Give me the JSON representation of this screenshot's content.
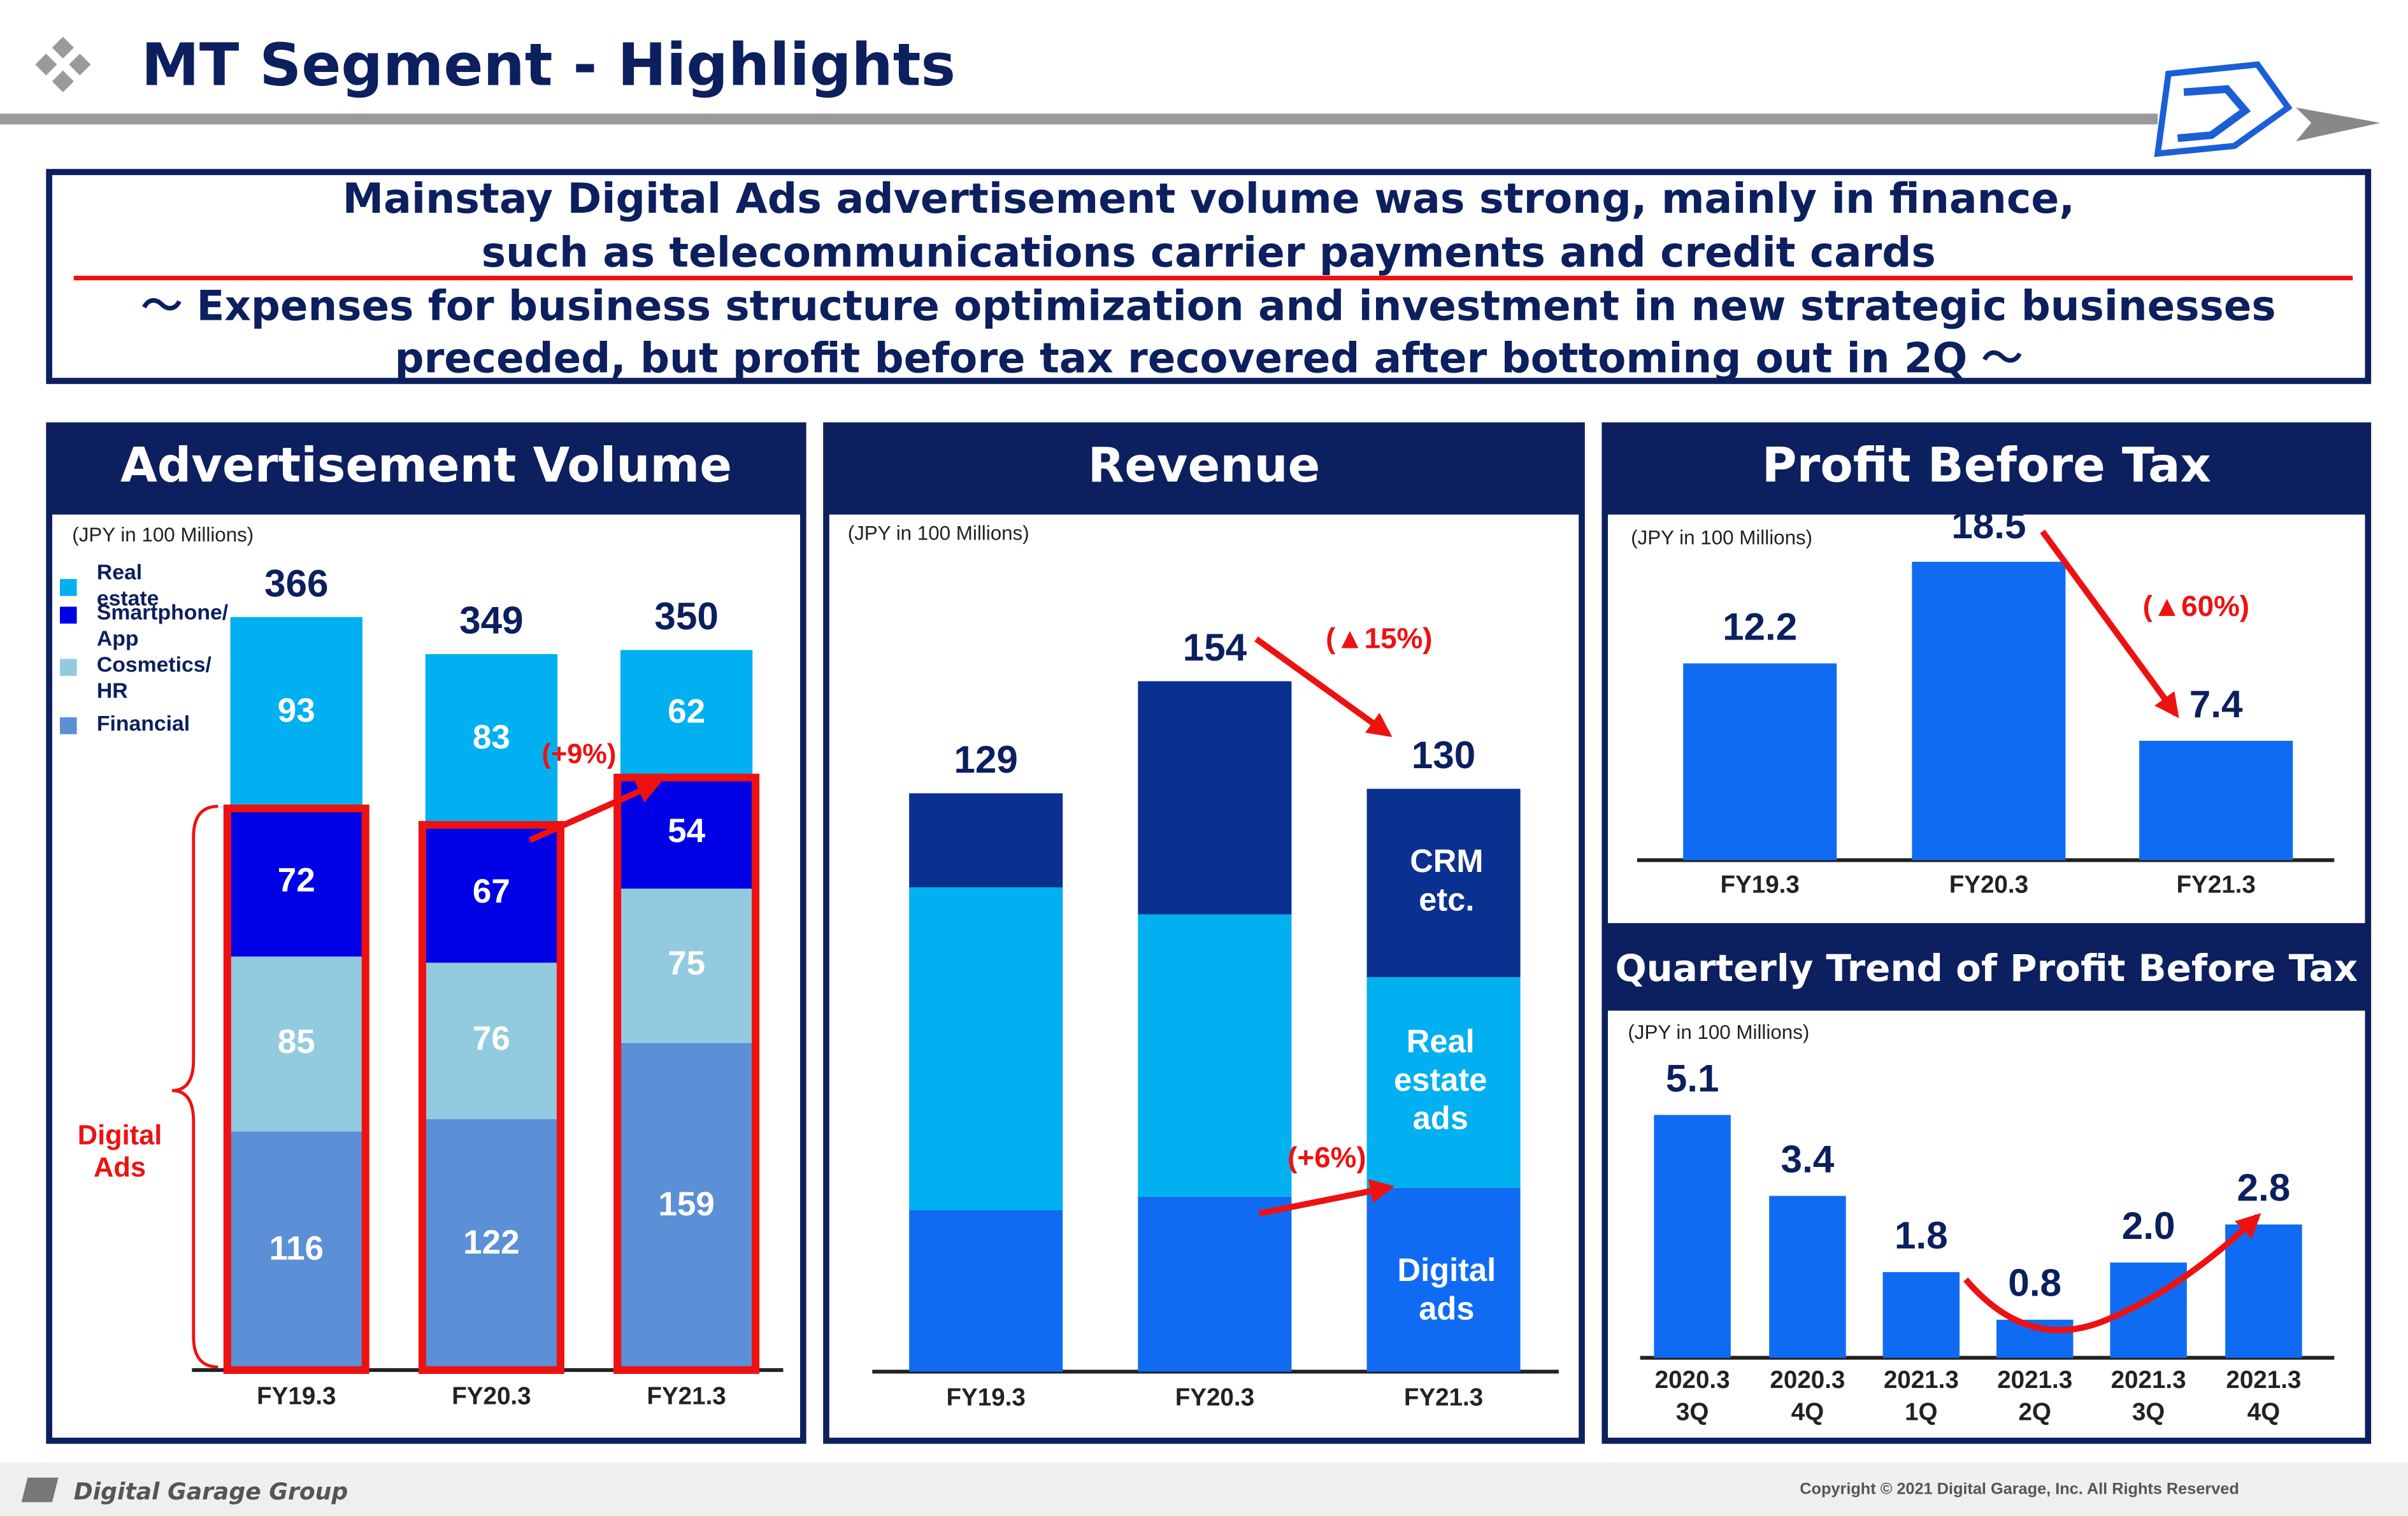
{
  "title": "MT Segment - Highlights",
  "banner": [
    "Mainstay Digital Ads  advertisement volume was strong, mainly in finance,",
    "such as telecommunications carrier payments and credit cards",
    "～ Expenses for business structure optimization and investment in new strategic businesses",
    "preceded, but profit before tax recovered after bottoming out in 2Q ～"
  ],
  "footer": {
    "brand": "Digital Garage Group",
    "copyright": "Copyright © 2021 Digital Garage, Inc. All Rights Reserved"
  },
  "chart_data": [
    {
      "type": "stacked_bar",
      "title": "Advertisement Volume",
      "subtitle": "(JPY in 100 Millions)",
      "categories": [
        "FY19.3",
        "FY20.3",
        "FY21.3"
      ],
      "series": [
        {
          "name": "Financial",
          "color": "#5b8fd6",
          "values": [
            116,
            122,
            159
          ]
        },
        {
          "name": "Cosmetics/ HR",
          "color": "#92cbe0",
          "values": [
            85,
            76,
            75
          ]
        },
        {
          "name": "Smartphone/ App",
          "color": "#0000e6",
          "values": [
            72,
            67,
            54
          ]
        },
        {
          "name": "Real estate",
          "color": "#00b0f0",
          "values": [
            93,
            83,
            62
          ]
        }
      ],
      "totals": [
        366,
        349,
        350
      ],
      "annotations": [
        "(+9%)",
        "Digital Ads"
      ],
      "ylim": [
        0,
        380
      ],
      "legend": "upper left"
    },
    {
      "type": "stacked_bar",
      "title": "Revenue",
      "subtitle": "(JPY in 100 Millions)",
      "categories": [
        "FY19.3",
        "FY20.3",
        "FY21.3"
      ],
      "series": [
        {
          "name": "Digital ads",
          "color": "#0f6cf2",
          "values": [
            36,
            39,
            41
          ]
        },
        {
          "name": "Real estate ads",
          "color": "#00b0f0",
          "values": [
            72,
            63,
            47
          ]
        },
        {
          "name": "CRM etc.",
          "color": "#0a318f",
          "values": [
            21,
            52,
            42
          ]
        }
      ],
      "totals": [
        129,
        154,
        130
      ],
      "annotations": [
        "(▲15%)",
        "(+6%)"
      ],
      "ylim": [
        0,
        160
      ]
    },
    {
      "type": "bar",
      "title": "Profit Before Tax",
      "subtitle": "(JPY in 100 Millions)",
      "categories": [
        "FY19.3",
        "FY20.3",
        "FY21.3"
      ],
      "values": [
        12.2,
        18.5,
        7.4
      ],
      "color": "#0f6cf2",
      "annotations": [
        "(▲60%)"
      ],
      "ylim": [
        0,
        20
      ]
    },
    {
      "type": "bar",
      "title": "Quarterly Trend of Profit Before Tax",
      "subtitle": "(JPY in 100 Millions)",
      "categories": [
        "2020.3 3Q",
        "2020.3 4Q",
        "2021.3 1Q",
        "2021.3 2Q",
        "2021.3 3Q",
        "2021.3 4Q"
      ],
      "values": [
        5.1,
        3.4,
        1.8,
        0.8,
        2.0,
        2.8
      ],
      "value_labels": [
        "5.1",
        "3.4",
        "1.8",
        "0.8",
        "2.0",
        "2.8"
      ],
      "color": "#0f6cf2",
      "ylim": [
        0,
        6
      ]
    }
  ]
}
